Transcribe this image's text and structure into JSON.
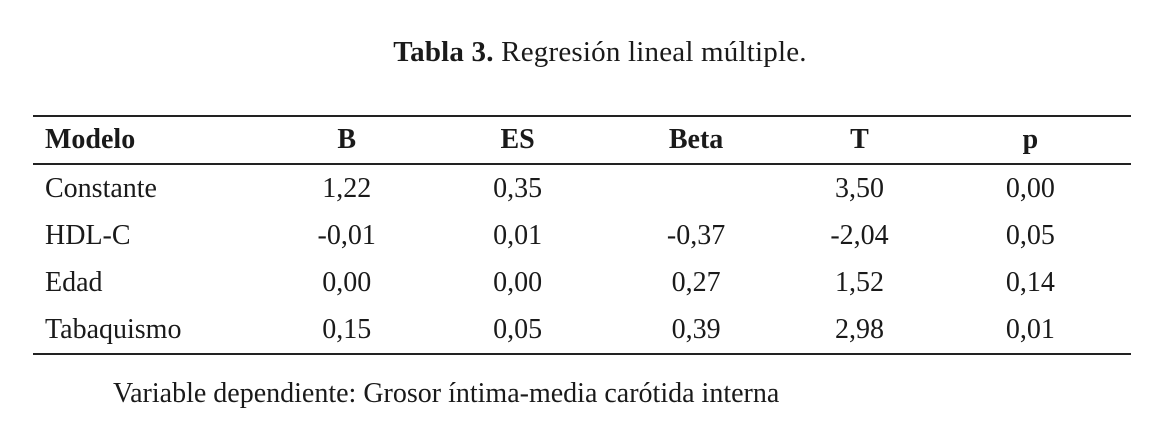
{
  "caption": {
    "label": "Tabla 3.",
    "text": " Regresión lineal múltiple."
  },
  "table": {
    "headers": [
      "Modelo",
      "B",
      "ES",
      "Beta",
      "T",
      "p"
    ],
    "rows": [
      [
        "Constante",
        "1,22",
        "0,35",
        "",
        "3,50",
        "0,00"
      ],
      [
        "HDL-C",
        "-0,01",
        "0,01",
        "-0,37",
        "-2,04",
        "0,05"
      ],
      [
        "Edad",
        "0,00",
        "0,00",
        "0,27",
        "1,52",
        "0,14"
      ],
      [
        "Tabaquismo",
        "0,15",
        "0,05",
        "0,39",
        "2,98",
        "0,01"
      ]
    ]
  },
  "footnote": "Variable dependiente: Grosor íntima-media carótida interna"
}
